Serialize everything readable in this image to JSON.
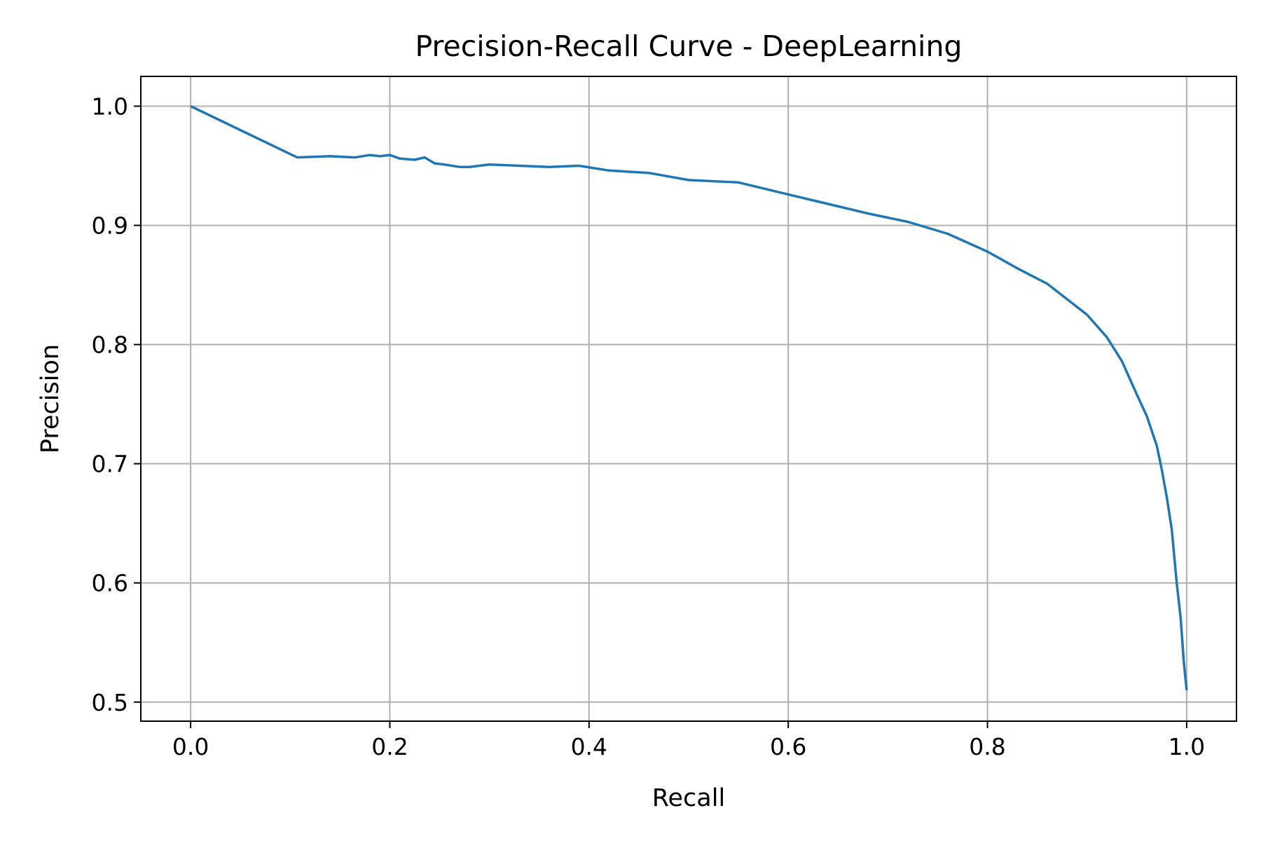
{
  "chart_data": {
    "type": "line",
    "title": "Precision-Recall Curve - DeepLearning",
    "xlabel": "Recall",
    "ylabel": "Precision",
    "xlim": [
      -0.05,
      1.05
    ],
    "ylim": [
      0.484,
      1.025
    ],
    "xticks": [
      0.0,
      0.2,
      0.4,
      0.6,
      0.8,
      1.0
    ],
    "xtick_labels": [
      "0.0",
      "0.2",
      "0.4",
      "0.6",
      "0.8",
      "1.0"
    ],
    "yticks": [
      0.5,
      0.6,
      0.7,
      0.8,
      0.9,
      1.0
    ],
    "ytick_labels": [
      "0.5",
      "0.6",
      "0.7",
      "0.8",
      "0.9",
      "1.0"
    ],
    "grid": true,
    "legend": "none",
    "series": [
      {
        "color": "#1f77b4",
        "x": [
          0.0,
          0.107,
          0.14,
          0.165,
          0.18,
          0.19,
          0.2,
          0.21,
          0.225,
          0.235,
          0.245,
          0.255,
          0.27,
          0.28,
          0.3,
          0.33,
          0.36,
          0.39,
          0.42,
          0.46,
          0.5,
          0.55,
          0.6,
          0.64,
          0.68,
          0.72,
          0.76,
          0.8,
          0.83,
          0.86,
          0.88,
          0.9,
          0.92,
          0.935,
          0.95,
          0.96,
          0.97,
          0.975,
          0.98,
          0.985,
          0.99,
          0.994,
          0.997,
          1.0
        ],
        "y": [
          1.0,
          0.957,
          0.958,
          0.957,
          0.959,
          0.958,
          0.959,
          0.956,
          0.955,
          0.957,
          0.952,
          0.951,
          0.949,
          0.949,
          0.951,
          0.95,
          0.949,
          0.95,
          0.946,
          0.944,
          0.938,
          0.936,
          0.926,
          0.918,
          0.91,
          0.903,
          0.893,
          0.878,
          0.864,
          0.851,
          0.838,
          0.825,
          0.806,
          0.786,
          0.758,
          0.74,
          0.715,
          0.695,
          0.672,
          0.645,
          0.6,
          0.57,
          0.535,
          0.51
        ]
      }
    ]
  }
}
